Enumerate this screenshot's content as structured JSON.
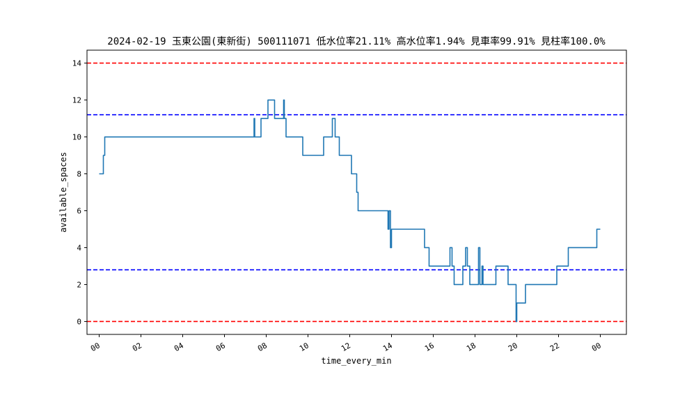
{
  "chart_data": {
    "type": "line",
    "title": "2024-02-19 玉東公園(東新街) 500111071 低水位率21.11% 高水位率1.94% 見車率99.91% 見柱率100.0%",
    "xlabel": "time_every_min",
    "ylabel": "available_spaces",
    "xlim": [
      "2024-02-18T23:25",
      "2024-02-20T01:15"
    ],
    "ylim": [
      -0.7,
      14.7
    ],
    "x_tick_labels": [
      "00",
      "02",
      "04",
      "06",
      "08",
      "10",
      "12",
      "14",
      "16",
      "18",
      "20",
      "22",
      "00"
    ],
    "x_ticks": [
      "2024-02-19T00:00",
      "2024-02-19T02:00",
      "2024-02-19T04:00",
      "2024-02-19T06:00",
      "2024-02-19T08:00",
      "2024-02-19T10:00",
      "2024-02-19T12:00",
      "2024-02-19T14:00",
      "2024-02-19T16:00",
      "2024-02-19T18:00",
      "2024-02-19T20:00",
      "2024-02-19T22:00",
      "2024-02-20T00:00"
    ],
    "y_ticks": [
      0,
      2,
      4,
      6,
      8,
      10,
      12,
      14
    ],
    "grid": false,
    "reference_lines": [
      {
        "y": 14,
        "color": "#ff0000",
        "style": "dashed"
      },
      {
        "y": 11.2,
        "color": "#0000ff",
        "style": "dashed"
      },
      {
        "y": 2.8,
        "color": "#0000ff",
        "style": "dashed"
      },
      {
        "y": 0,
        "color": "#ff0000",
        "style": "dashed"
      }
    ],
    "series": [
      {
        "color": "#1f77b4",
        "points": [
          [
            "2024-02-19T00:00",
            8
          ],
          [
            "2024-02-19T00:12",
            8
          ],
          [
            "2024-02-19T00:12",
            9
          ],
          [
            "2024-02-19T00:16",
            9
          ],
          [
            "2024-02-19T00:16",
            10
          ],
          [
            "2024-02-19T07:25",
            10
          ],
          [
            "2024-02-19T07:25",
            11
          ],
          [
            "2024-02-19T07:27",
            11
          ],
          [
            "2024-02-19T07:27",
            10
          ],
          [
            "2024-02-19T07:45",
            10
          ],
          [
            "2024-02-19T07:45",
            11
          ],
          [
            "2024-02-19T08:05",
            11
          ],
          [
            "2024-02-19T08:05",
            12
          ],
          [
            "2024-02-19T08:24",
            12
          ],
          [
            "2024-02-19T08:24",
            11
          ],
          [
            "2024-02-19T08:50",
            11
          ],
          [
            "2024-02-19T08:50",
            12
          ],
          [
            "2024-02-19T08:52",
            12
          ],
          [
            "2024-02-19T08:52",
            11
          ],
          [
            "2024-02-19T08:57",
            11
          ],
          [
            "2024-02-19T08:57",
            10
          ],
          [
            "2024-02-19T09:45",
            10
          ],
          [
            "2024-02-19T09:45",
            9
          ],
          [
            "2024-02-19T10:45",
            9
          ],
          [
            "2024-02-19T10:45",
            10
          ],
          [
            "2024-02-19T11:10",
            10
          ],
          [
            "2024-02-19T11:10",
            11
          ],
          [
            "2024-02-19T11:18",
            11
          ],
          [
            "2024-02-19T11:18",
            10
          ],
          [
            "2024-02-19T11:30",
            10
          ],
          [
            "2024-02-19T11:30",
            9
          ],
          [
            "2024-02-19T12:05",
            9
          ],
          [
            "2024-02-19T12:05",
            8
          ],
          [
            "2024-02-19T12:20",
            8
          ],
          [
            "2024-02-19T12:20",
            7
          ],
          [
            "2024-02-19T12:24",
            7
          ],
          [
            "2024-02-19T12:24",
            6
          ],
          [
            "2024-02-19T13:50",
            6
          ],
          [
            "2024-02-19T13:50",
            5
          ],
          [
            "2024-02-19T13:53",
            5
          ],
          [
            "2024-02-19T13:53",
            6
          ],
          [
            "2024-02-19T13:57",
            6
          ],
          [
            "2024-02-19T13:57",
            4
          ],
          [
            "2024-02-19T14:00",
            4
          ],
          [
            "2024-02-19T14:00",
            5
          ],
          [
            "2024-02-19T15:35",
            5
          ],
          [
            "2024-02-19T15:35",
            4
          ],
          [
            "2024-02-19T15:48",
            4
          ],
          [
            "2024-02-19T15:48",
            3
          ],
          [
            "2024-02-19T16:48",
            3
          ],
          [
            "2024-02-19T16:48",
            4
          ],
          [
            "2024-02-19T16:54",
            4
          ],
          [
            "2024-02-19T16:54",
            3
          ],
          [
            "2024-02-19T17:00",
            3
          ],
          [
            "2024-02-19T17:00",
            2
          ],
          [
            "2024-02-19T17:25",
            2
          ],
          [
            "2024-02-19T17:25",
            3
          ],
          [
            "2024-02-19T17:33",
            3
          ],
          [
            "2024-02-19T17:33",
            4
          ],
          [
            "2024-02-19T17:38",
            4
          ],
          [
            "2024-02-19T17:38",
            3
          ],
          [
            "2024-02-19T17:45",
            3
          ],
          [
            "2024-02-19T17:45",
            2
          ],
          [
            "2024-02-19T18:10",
            2
          ],
          [
            "2024-02-19T18:10",
            4
          ],
          [
            "2024-02-19T18:14",
            4
          ],
          [
            "2024-02-19T18:14",
            2
          ],
          [
            "2024-02-19T18:20",
            2
          ],
          [
            "2024-02-19T18:20",
            3
          ],
          [
            "2024-02-19T18:23",
            3
          ],
          [
            "2024-02-19T18:23",
            2
          ],
          [
            "2024-02-19T19:00",
            2
          ],
          [
            "2024-02-19T19:00",
            3
          ],
          [
            "2024-02-19T19:35",
            3
          ],
          [
            "2024-02-19T19:35",
            2
          ],
          [
            "2024-02-19T19:58",
            2
          ],
          [
            "2024-02-19T19:58",
            0
          ],
          [
            "2024-02-19T20:00",
            0
          ],
          [
            "2024-02-19T20:00",
            1
          ],
          [
            "2024-02-19T20:25",
            1
          ],
          [
            "2024-02-19T20:25",
            2
          ],
          [
            "2024-02-19T21:55",
            2
          ],
          [
            "2024-02-19T21:55",
            3
          ],
          [
            "2024-02-19T22:28",
            3
          ],
          [
            "2024-02-19T22:28",
            4
          ],
          [
            "2024-02-19T23:50",
            4
          ],
          [
            "2024-02-19T23:50",
            5
          ],
          [
            "2024-02-20T00:00",
            5
          ]
        ]
      }
    ]
  }
}
